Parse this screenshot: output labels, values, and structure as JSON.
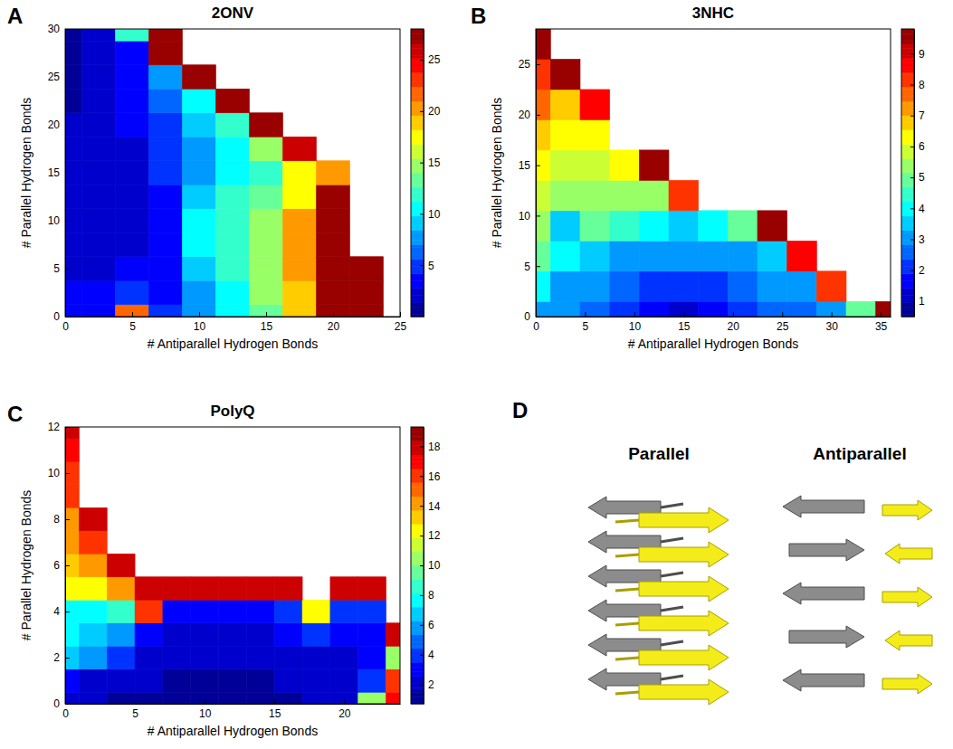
{
  "chart_data": [
    {
      "panel": "A",
      "type": "heatmap",
      "title": "2ONV",
      "x_label": "# Antiparallel Hydrogen Bonds",
      "y_label": "# Parallel Hydrogen Bonds",
      "x": [
        0,
        2.5,
        5,
        7.5,
        10,
        12.5,
        15,
        17.5,
        20,
        22.5,
        25
      ],
      "y": [
        0,
        2.5,
        5,
        7.5,
        10,
        12.5,
        15,
        17.5,
        20,
        22.5,
        25,
        27.5,
        30
      ],
      "z": [
        [
          4,
          4,
          22,
          5,
          8,
          10,
          13,
          19,
          27,
          27,
          null
        ],
        [
          3,
          3,
          5,
          4,
          8,
          11,
          14,
          19,
          27,
          27,
          null
        ],
        [
          2,
          2,
          3,
          4,
          9,
          12,
          15,
          20,
          27,
          27,
          null
        ],
        [
          2,
          2,
          2,
          4,
          10,
          12,
          15,
          20,
          27,
          null,
          null
        ],
        [
          2,
          2,
          2,
          4,
          10,
          12,
          14,
          20,
          27,
          null,
          null
        ],
        [
          2,
          2,
          2,
          4,
          9,
          12,
          13,
          18,
          27,
          null,
          null
        ],
        [
          2,
          2,
          2,
          5,
          8,
          10,
          12,
          18,
          20,
          null,
          null
        ],
        [
          2,
          2,
          2,
          5,
          8,
          11,
          15,
          26,
          null,
          null,
          null
        ],
        [
          2,
          2,
          3,
          5,
          9,
          12,
          27,
          null,
          null,
          null,
          null
        ],
        [
          1,
          2,
          3,
          6,
          10,
          27,
          null,
          null,
          null,
          null,
          null
        ],
        [
          1,
          2,
          3,
          7,
          27,
          null,
          null,
          null,
          null,
          null,
          null
        ],
        [
          1,
          2,
          4,
          27,
          null,
          null,
          null,
          null,
          null,
          null,
          null
        ],
        [
          1,
          2,
          12,
          27,
          null,
          null,
          null,
          null,
          null,
          null,
          null
        ]
      ],
      "xlim": [
        0,
        25
      ],
      "ylim": [
        0,
        30
      ],
      "xticks": [
        0,
        5,
        10,
        15,
        20,
        25
      ],
      "yticks": [
        0,
        5,
        10,
        15,
        20,
        25,
        30
      ],
      "zlim": [
        0,
        28
      ],
      "zticks": [
        5,
        10,
        15,
        20,
        25
      ]
    },
    {
      "panel": "B",
      "type": "heatmap",
      "title": "3NHC",
      "x_label": "# Antiparallel Hydrogen Bonds",
      "y_label": "# Parallel Hydrogen Bonds",
      "x": [
        0,
        3,
        6,
        9,
        12,
        15,
        18,
        21,
        24,
        27,
        30,
        33,
        36
      ],
      "y": [
        0,
        3,
        6,
        9,
        12,
        15,
        18,
        21,
        24,
        27
      ],
      "z": [
        [
          3,
          3,
          2.5,
          2,
          1.5,
          1,
          1.5,
          2,
          2.5,
          2.5,
          3,
          5,
          9.5
        ],
        [
          4,
          3,
          3,
          2.5,
          2,
          2,
          2,
          2.5,
          3,
          3,
          8,
          null,
          null
        ],
        [
          5,
          4,
          3.5,
          3,
          3,
          3,
          3,
          3,
          3.5,
          8.5,
          null,
          null,
          null
        ],
        [
          5.5,
          3.5,
          5,
          4.5,
          4,
          3.5,
          4,
          5,
          9.5,
          null,
          null,
          null,
          null
        ],
        [
          6,
          5.5,
          5.5,
          5.5,
          5.5,
          8,
          null,
          null,
          null,
          null,
          null,
          null,
          null
        ],
        [
          6.5,
          6,
          6,
          6.5,
          9.5,
          null,
          null,
          null,
          null,
          null,
          null,
          null,
          null
        ],
        [
          7,
          6.5,
          6.5,
          null,
          null,
          null,
          null,
          null,
          null,
          null,
          null,
          null,
          null
        ],
        [
          7.5,
          7,
          8.5,
          null,
          null,
          null,
          null,
          null,
          null,
          null,
          null,
          null,
          null
        ],
        [
          8,
          9.5,
          null,
          null,
          null,
          null,
          null,
          null,
          null,
          null,
          null,
          null,
          null
        ],
        [
          9.5,
          null,
          null,
          null,
          null,
          null,
          null,
          null,
          null,
          null,
          null,
          null,
          null
        ]
      ],
      "xlim": [
        0,
        36
      ],
      "ylim": [
        0,
        28.5
      ],
      "xticks": [
        0,
        5,
        10,
        15,
        20,
        25,
        30,
        35
      ],
      "yticks": [
        0,
        5,
        10,
        15,
        20,
        25
      ],
      "zlim": [
        0.5,
        9.8
      ],
      "zticks": [
        1,
        2,
        3,
        4,
        5,
        6,
        7,
        8,
        9
      ]
    },
    {
      "panel": "C",
      "type": "heatmap",
      "title": "PolyQ",
      "x_label": "# Antiparallel Hydrogen Bonds",
      "y_label": "# Parallel Hydrogen Bonds",
      "x": [
        0,
        2,
        4,
        6,
        8,
        10,
        12,
        14,
        16,
        18,
        20,
        22,
        24
      ],
      "y": [
        0,
        1,
        2,
        3,
        4,
        5,
        6,
        7,
        8,
        9,
        10,
        11,
        12
      ],
      "z": [
        [
          2,
          2,
          1.5,
          1.5,
          1,
          1,
          1,
          1.5,
          1.5,
          2,
          2,
          10,
          17
        ],
        [
          3,
          2,
          2,
          2,
          1.5,
          1.5,
          1.5,
          1.5,
          2,
          2,
          2,
          4,
          16
        ],
        [
          7,
          6,
          4,
          2.5,
          2,
          2,
          2,
          2,
          2,
          2.5,
          2.5,
          3,
          10
        ],
        [
          8,
          7,
          6,
          3,
          2.5,
          2.5,
          2.5,
          2.5,
          3,
          4,
          3,
          3,
          18
        ],
        [
          8,
          8,
          9,
          16,
          3,
          3,
          3,
          3,
          4,
          12,
          3.5,
          4,
          null
        ],
        [
          12,
          12,
          14,
          18,
          18,
          18,
          18,
          18,
          18,
          null,
          18,
          18,
          null
        ],
        [
          13,
          14,
          18,
          null,
          null,
          null,
          null,
          null,
          null,
          null,
          null,
          null,
          null
        ],
        [
          14,
          16,
          null,
          null,
          null,
          null,
          null,
          null,
          null,
          null,
          null,
          null,
          null
        ],
        [
          14,
          18,
          null,
          null,
          null,
          null,
          null,
          null,
          null,
          null,
          null,
          null,
          null
        ],
        [
          16,
          null,
          null,
          null,
          null,
          null,
          null,
          null,
          null,
          null,
          null,
          null,
          null
        ],
        [
          16,
          null,
          null,
          null,
          null,
          null,
          null,
          null,
          null,
          null,
          null,
          null,
          null
        ],
        [
          17,
          null,
          null,
          null,
          null,
          null,
          null,
          null,
          null,
          null,
          null,
          null,
          null
        ],
        [
          18,
          null,
          null,
          null,
          null,
          null,
          null,
          null,
          null,
          null,
          null,
          null,
          null
        ]
      ],
      "xlim": [
        0,
        24
      ],
      "ylim": [
        0,
        12
      ],
      "xticks": [
        0,
        5,
        10,
        15,
        20
      ],
      "yticks": [
        0,
        2,
        4,
        6,
        8,
        10,
        12
      ],
      "zlim": [
        0.7,
        19.3
      ],
      "zticks": [
        2,
        4,
        6,
        8,
        10,
        12,
        14,
        16,
        18
      ]
    },
    {
      "panel": "D",
      "type": "diagram",
      "labels": [
        "Parallel",
        "Antiparallel"
      ]
    }
  ]
}
